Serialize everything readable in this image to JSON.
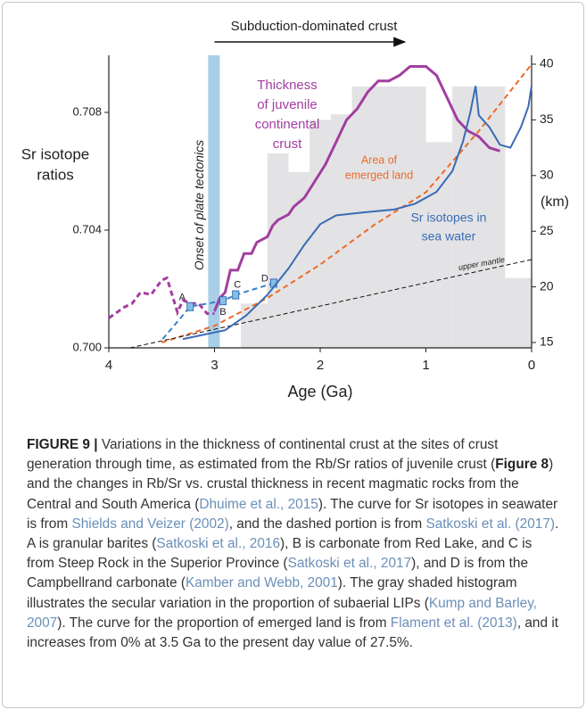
{
  "chart_data": {
    "type": "line",
    "title": "Subduction-dominated crust",
    "arrow_x": [
      3.0,
      1.2
    ],
    "band": {
      "x": [
        3.06,
        2.95
      ],
      "label": "Onset of plate tectonics",
      "color": "#a9cfe8"
    },
    "xlabel": "Age (Ga)",
    "ylabel": [
      "Sr isotope",
      "ratios"
    ],
    "y2label": "(km)",
    "xlim": [
      4,
      0
    ],
    "xticks": [
      4,
      3,
      2,
      1,
      0
    ],
    "ylim": [
      0.7,
      0.70994
    ],
    "yticks": [
      {
        "value": 0.7,
        "label": "0.700"
      },
      0.704,
      0.708
    ],
    "y2lim": [
      14.52,
      40.8
    ],
    "y2ticks": [
      15,
      20,
      25,
      30,
      35,
      40
    ],
    "series": [
      {
        "type": "histogram",
        "axis": "y2",
        "color": "#e3e3e5",
        "bins": [
          2.75,
          2.5,
          2.3,
          2.1,
          1.9,
          1.7,
          1.0,
          0.75,
          0.25,
          0
        ],
        "values": [
          18.5,
          32,
          30.3,
          35,
          35.5,
          38,
          33,
          38,
          20.8
        ]
      },
      {
        "type": "line",
        "axis": "y2",
        "color": "#a23ea0",
        "style": "dashed",
        "x": [
          4.0,
          3.85,
          3.78,
          3.7,
          3.6,
          3.5,
          3.45,
          3.35,
          3.3,
          3.22,
          3.15,
          3.07,
          3.0
        ],
        "values": [
          17.2,
          18.2,
          18.5,
          19.5,
          19.3,
          20.6,
          20.8,
          17.7,
          18.8,
          18.5,
          18.5,
          17.6,
          17.6
        ]
      },
      {
        "type": "line",
        "axis": "y2",
        "color": "#a23ea0",
        "style": "solid",
        "label": [
          "Thickness",
          "of juvenile",
          "continental",
          "crust"
        ],
        "x": [
          3.0,
          2.95,
          2.9,
          2.85,
          2.78,
          2.72,
          2.65,
          2.6,
          2.5,
          2.45,
          2.4,
          2.3,
          2.25,
          2.15,
          2.05,
          1.95,
          1.85,
          1.75,
          1.65,
          1.55,
          1.45,
          1.35,
          1.25,
          1.15,
          1.0,
          0.9,
          0.8,
          0.7,
          0.6,
          0.5,
          0.4,
          0.3
        ],
        "values": [
          17.8,
          19,
          19.5,
          21.5,
          21.5,
          23,
          23,
          24,
          24.5,
          25.5,
          26,
          26.5,
          27.2,
          28,
          29.5,
          31,
          33,
          35,
          36,
          37.5,
          38.5,
          38.5,
          39,
          39.8,
          39.8,
          39,
          37,
          35,
          34,
          33.5,
          32.5,
          32.2
        ]
      },
      {
        "type": "line",
        "axis": "y2",
        "color": "#ee6a2a",
        "style": "dashed",
        "label": [
          "Area of",
          "emerged land"
        ],
        "x": [
          3.5,
          3.0,
          2.5,
          2.0,
          1.5,
          1.0,
          0.5,
          0.0
        ],
        "values": [
          15,
          16.5,
          19,
          22,
          25.5,
          28.5,
          34,
          40
        ]
      },
      {
        "type": "line",
        "axis": "y",
        "color": "#111111",
        "style": "dashed",
        "label": [
          "upper mantle"
        ],
        "x": [
          3.8,
          0.0
        ],
        "values": [
          0.7,
          0.703
        ]
      },
      {
        "type": "line",
        "axis": "y",
        "color": "#3a80c8",
        "style": "dashed",
        "x": [
          3.49,
          3.23,
          2.92,
          2.8,
          2.44
        ],
        "values": [
          0.7003,
          0.7014,
          0.7016,
          0.7018,
          0.7022
        ],
        "point_labels": [
          null,
          "A",
          "B",
          "C",
          "D"
        ]
      },
      {
        "type": "line",
        "axis": "y",
        "color": "#3a6bb5",
        "style": "solid",
        "label": [
          "Sr isotopes in",
          "sea water"
        ],
        "x": [
          3.3,
          2.9,
          2.7,
          2.5,
          2.3,
          2.15,
          2.0,
          1.85,
          1.6,
          1.3,
          1.1,
          0.9,
          0.75,
          0.65,
          0.58,
          0.53,
          0.5,
          0.4,
          0.3,
          0.2,
          0.1,
          0.03,
          0.0
        ],
        "values": [
          0.7003,
          0.7006,
          0.7011,
          0.7018,
          0.7027,
          0.7035,
          0.7042,
          0.7045,
          0.7046,
          0.7047,
          0.7049,
          0.7053,
          0.706,
          0.707,
          0.708,
          0.7089,
          0.7079,
          0.7075,
          0.7069,
          0.7068,
          0.7075,
          0.7082,
          0.7089
        ]
      }
    ]
  },
  "caption": [
    {
      "text": "FIGURE 9 |",
      "kind": "bold"
    },
    {
      "text": " Variations in the thickness of continental crust at the sites of crust generation through time, as estimated from the Rb/Sr ratios of juvenile crust (",
      "kind": "plain"
    },
    {
      "text": "Figure 8",
      "kind": "bold"
    },
    {
      "text": ") and the changes in Rb/Sr vs. crustal thickness in recent magmatic rocks from the Central and South America (",
      "kind": "plain"
    },
    {
      "text": "Dhuime et al., 2015",
      "kind": "link"
    },
    {
      "text": "). The curve for Sr isotopes in seawater is from ",
      "kind": "plain"
    },
    {
      "text": "Shields and Veizer (2002)",
      "kind": "link"
    },
    {
      "text": ", and the dashed portion is from ",
      "kind": "plain"
    },
    {
      "text": "Satkoski et al. (2017)",
      "kind": "link"
    },
    {
      "text": ". A is granular barites (",
      "kind": "plain"
    },
    {
      "text": "Satkoski et al., 2016",
      "kind": "link"
    },
    {
      "text": "), B is carbonate from Red Lake, and C is from Steep Rock in the Superior Province (",
      "kind": "plain"
    },
    {
      "text": "Satkoski et al., 2017",
      "kind": "link"
    },
    {
      "text": "), and D is from the Campbellrand carbonate (",
      "kind": "plain"
    },
    {
      "text": "Kamber and Webb, 2001",
      "kind": "link"
    },
    {
      "text": "). The gray shaded histogram illustrates the secular variation in the proportion of subaerial LIPs (",
      "kind": "plain"
    },
    {
      "text": "Kump and Barley, 2007",
      "kind": "link"
    },
    {
      "text": "). The curve for the proportion of emerged land is from ",
      "kind": "plain"
    },
    {
      "text": "Flament et al. (2013)",
      "kind": "link"
    },
    {
      "text": ", and it increases from 0% at 3.5 Ga to the present day value of 27.5%.",
      "kind": "plain"
    }
  ]
}
